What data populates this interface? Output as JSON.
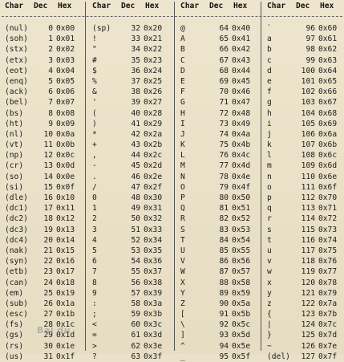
{
  "headers": [
    "Char",
    "Dec",
    "Hex",
    "Char",
    "Dec",
    "Hex",
    "Char",
    "Dec",
    "Hex",
    "Char",
    "Dec",
    "Hex"
  ],
  "rows": [
    [
      "(nul)",
      "0",
      "0x00",
      "(sp)",
      "32",
      "0x20",
      "@",
      "64",
      "0x40",
      "`",
      "96",
      "0x60"
    ],
    [
      "(soh)",
      "1",
      "0x01",
      "!",
      "33",
      "0x21",
      "A",
      "65",
      "0x41",
      "a",
      "97",
      "0x61"
    ],
    [
      "(stx)",
      "2",
      "0x02",
      "\"",
      "34",
      "0x22",
      "B",
      "66",
      "0x42",
      "b",
      "98",
      "0x62"
    ],
    [
      "(etx)",
      "3",
      "0x03",
      "#",
      "35",
      "0x23",
      "C",
      "67",
      "0x43",
      "c",
      "99",
      "0x63"
    ],
    [
      "(eot)",
      "4",
      "0x04",
      "$",
      "36",
      "0x24",
      "D",
      "68",
      "0x44",
      "d",
      "100",
      "0x64"
    ],
    [
      "(enq)",
      "5",
      "0x05",
      "%",
      "37",
      "0x25",
      "E",
      "69",
      "0x45",
      "e",
      "101",
      "0x65"
    ],
    [
      "(ack)",
      "6",
      "0x06",
      "&",
      "38",
      "0x26",
      "F",
      "70",
      "0x46",
      "f",
      "102",
      "0x66"
    ],
    [
      "(bel)",
      "7",
      "0x07",
      "'",
      "39",
      "0x27",
      "G",
      "71",
      "0x47",
      "g",
      "103",
      "0x67"
    ],
    [
      "(bs)",
      "8",
      "0x08",
      "(",
      "40",
      "0x28",
      "H",
      "72",
      "0x48",
      "h",
      "104",
      "0x68"
    ],
    [
      "(ht)",
      "9",
      "0x09",
      ")",
      "41",
      "0x29",
      "I",
      "73",
      "0x49",
      "i",
      "105",
      "0x69"
    ],
    [
      "(nl)",
      "10",
      "0x0a",
      "*",
      "42",
      "0x2a",
      "J",
      "74",
      "0x4a",
      "j",
      "106",
      "0x6a"
    ],
    [
      "(vt)",
      "11",
      "0x0b",
      "+",
      "43",
      "0x2b",
      "K",
      "75",
      "0x4b",
      "k",
      "107",
      "0x6b"
    ],
    [
      "(np)",
      "12",
      "0x0c",
      ",",
      "44",
      "0x2c",
      "L",
      "76",
      "0x4c",
      "l",
      "108",
      "0x6c"
    ],
    [
      "(cr)",
      "13",
      "0x0d",
      "-",
      "45",
      "0x2d",
      "M",
      "77",
      "0x4d",
      "m",
      "109",
      "0x6d"
    ],
    [
      "(so)",
      "14",
      "0x0e",
      ".",
      "46",
      "0x2e",
      "N",
      "78",
      "0x4e",
      "n",
      "110",
      "0x6e"
    ],
    [
      "(si)",
      "15",
      "0x0f",
      "/",
      "47",
      "0x2f",
      "O",
      "79",
      "0x4f",
      "o",
      "111",
      "0x6f"
    ],
    [
      "(dle)",
      "16",
      "0x10",
      "0",
      "48",
      "0x30",
      "P",
      "80",
      "0x50",
      "p",
      "112",
      "0x70"
    ],
    [
      "(dc1)",
      "17",
      "0x11",
      "1",
      "49",
      "0x31",
      "Q",
      "81",
      "0x51",
      "q",
      "113",
      "0x71"
    ],
    [
      "(dc2)",
      "18",
      "0x12",
      "2",
      "50",
      "0x32",
      "R",
      "82",
      "0x52",
      "r",
      "114",
      "0x72"
    ],
    [
      "(dc3)",
      "19",
      "0x13",
      "3",
      "51",
      "0x33",
      "S",
      "83",
      "0x53",
      "s",
      "115",
      "0x73"
    ],
    [
      "(dc4)",
      "20",
      "0x14",
      "4",
      "52",
      "0x34",
      "T",
      "84",
      "0x54",
      "t",
      "116",
      "0x74"
    ],
    [
      "(nak)",
      "21",
      "0x15",
      "5",
      "53",
      "0x35",
      "U",
      "85",
      "0x55",
      "u",
      "117",
      "0x75"
    ],
    [
      "(syn)",
      "22",
      "0x16",
      "6",
      "54",
      "0x36",
      "V",
      "86",
      "0x56",
      "v",
      "118",
      "0x76"
    ],
    [
      "(etb)",
      "23",
      "0x17",
      "7",
      "55",
      "0x37",
      "W",
      "87",
      "0x57",
      "w",
      "119",
      "0x77"
    ],
    [
      "(can)",
      "24",
      "0x18",
      "8",
      "56",
      "0x38",
      "X",
      "88",
      "0x58",
      "x",
      "120",
      "0x78"
    ],
    [
      "(em)",
      "25",
      "0x19",
      "9",
      "57",
      "0x39",
      "Y",
      "89",
      "0x59",
      "y",
      "121",
      "0x79"
    ],
    [
      "(sub)",
      "26",
      "0x1a",
      ":",
      "58",
      "0x3a",
      "Z",
      "90",
      "0x5a",
      "z",
      "122",
      "0x7a"
    ],
    [
      "(esc)",
      "27",
      "0x1b",
      ";",
      "59",
      "0x3b",
      "[",
      "91",
      "0x5b",
      "{",
      "123",
      "0x7b"
    ],
    [
      "(fs)",
      "28",
      "0x1c",
      "<",
      "60",
      "0x3c",
      "\\",
      "92",
      "0x5c",
      "|",
      "124",
      "0x7c"
    ],
    [
      "(gs)",
      "29",
      "0x1d",
      "=",
      "61",
      "0x3d",
      "]",
      "93",
      "0x5d",
      "}",
      "125",
      "0x7d"
    ],
    [
      "(rs)",
      "30",
      "0x1e",
      ">",
      "62",
      "0x3e",
      "^",
      "94",
      "0x5e",
      "~",
      "126",
      "0x7e"
    ],
    [
      "(us)",
      "31",
      "0x1f",
      "?",
      "63",
      "0x3f",
      "_",
      "95",
      "0x5f",
      "(del)",
      "127",
      "0x7f"
    ]
  ],
  "watermark": "Bai du"
}
